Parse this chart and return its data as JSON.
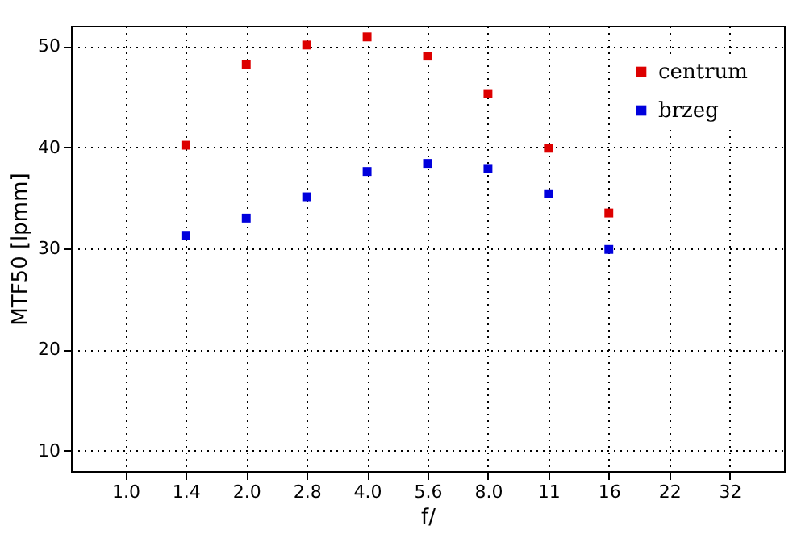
{
  "chart_data": {
    "type": "scatter",
    "xlabel": "f/",
    "ylabel": "MTF50 [lpmm]",
    "categories": [
      "1.0",
      "1.4",
      "2.0",
      "2.8",
      "4.0",
      "5.6",
      "8.0",
      "11",
      "16",
      "22",
      "32"
    ],
    "series": [
      {
        "name": "centrum",
        "color": "#dd0000",
        "values": [
          null,
          40.2,
          48.2,
          50.1,
          50.9,
          49.0,
          45.3,
          39.9,
          33.5,
          null,
          null
        ]
      },
      {
        "name": "brzeg",
        "color": "#0000dd",
        "values": [
          null,
          31.3,
          33.0,
          35.1,
          37.6,
          38.4,
          37.9,
          35.4,
          29.9,
          null,
          null
        ]
      }
    ],
    "ylim": [
      8,
      52
    ],
    "yticks": [
      10,
      20,
      30,
      40,
      50
    ],
    "grid": true,
    "legend": "top right",
    "marker": "square"
  }
}
